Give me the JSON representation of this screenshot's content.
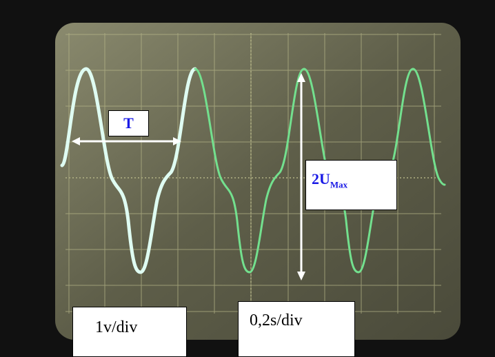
{
  "annotations": {
    "period": "T",
    "amplitude": {
      "text": "2U",
      "subscript": "Max"
    },
    "vertical_scale": "1v/div",
    "horizontal_scale": "0,2s/div"
  }
}
